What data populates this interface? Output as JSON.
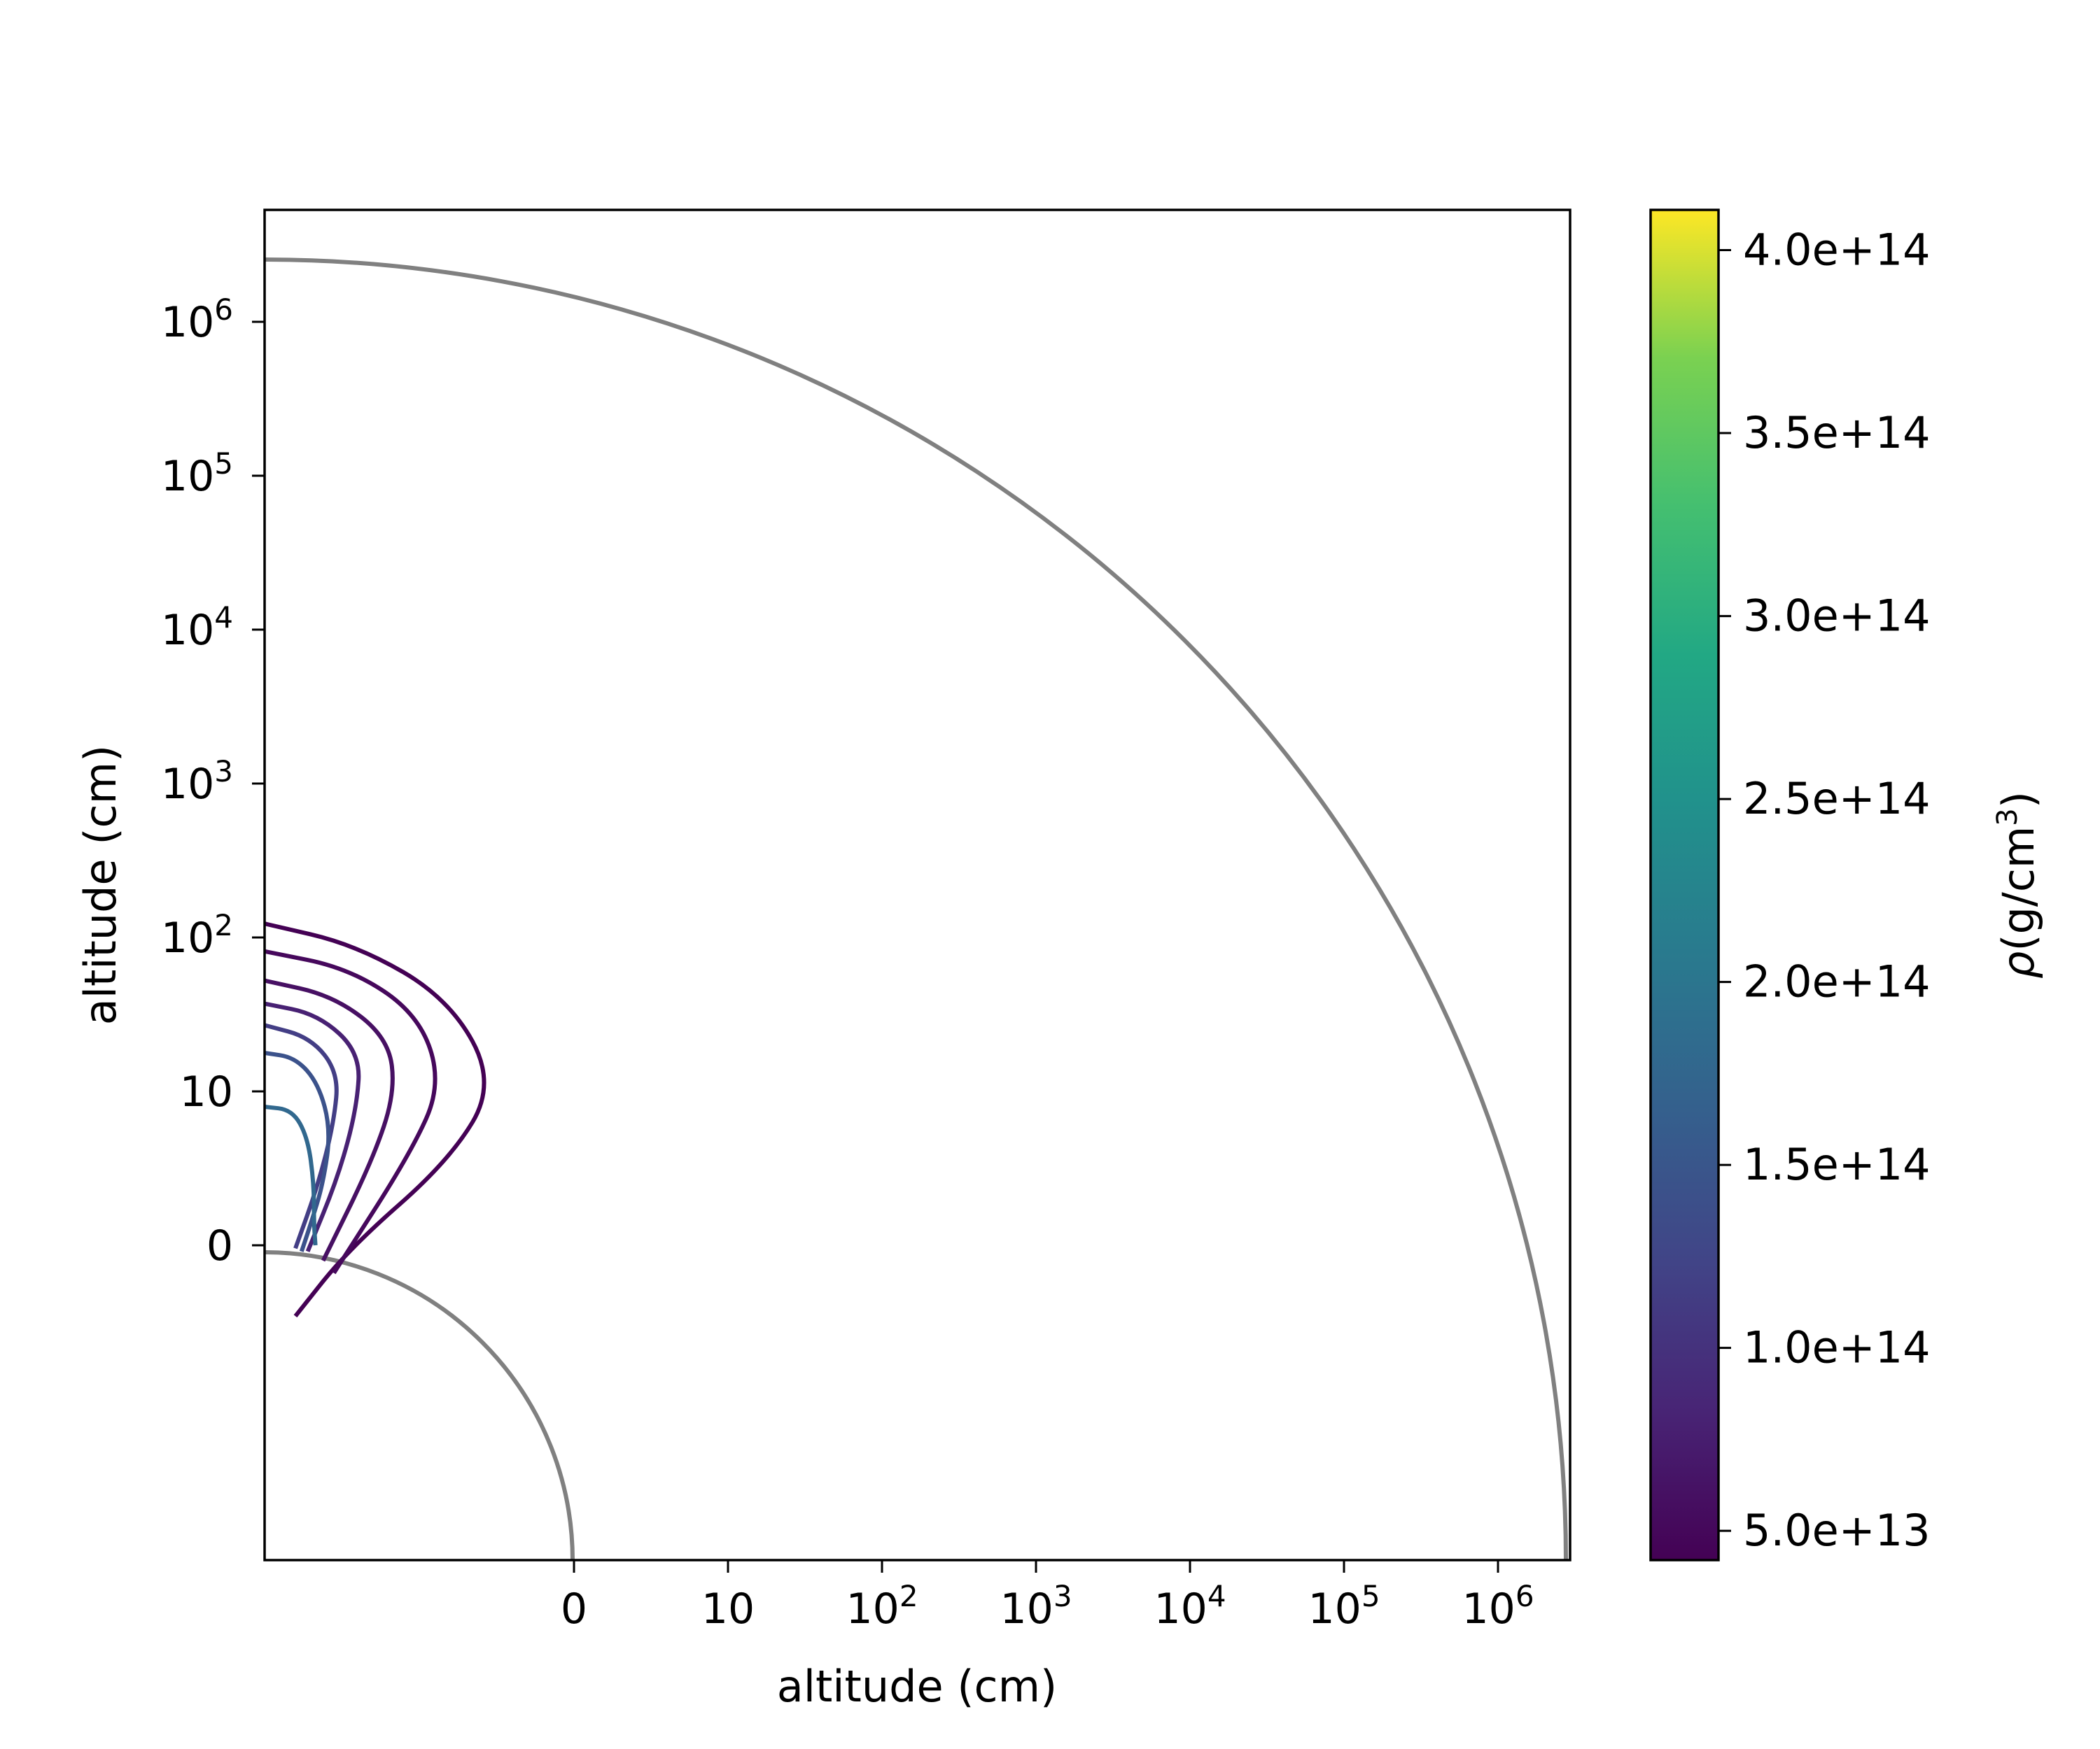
{
  "chart_data": {
    "type": "contour",
    "title": "",
    "xlabel": "altitude (cm)",
    "ylabel": "altitude (cm)",
    "x_tick_labels": [
      {
        "base": "0",
        "exp": ""
      },
      {
        "base": "10",
        "exp": ""
      },
      {
        "base": "10",
        "exp": "2"
      },
      {
        "base": "10",
        "exp": "3"
      },
      {
        "base": "10",
        "exp": "4"
      },
      {
        "base": "10",
        "exp": "5"
      },
      {
        "base": "10",
        "exp": "6"
      }
    ],
    "y_tick_labels": [
      {
        "base": "0",
        "exp": ""
      },
      {
        "base": "10",
        "exp": ""
      },
      {
        "base": "10",
        "exp": "2"
      },
      {
        "base": "10",
        "exp": "3"
      },
      {
        "base": "10",
        "exp": "4"
      },
      {
        "base": "10",
        "exp": "5"
      },
      {
        "base": "10",
        "exp": "6"
      }
    ],
    "axis_scale": "log altitude above surface (symlog-like, 0 at stellar surface)",
    "axis_range_decades": [
      -2.0,
      6.4
    ],
    "boundaries": [
      {
        "name": "inner surface",
        "radius_decades": 2.0,
        "color": "#808080"
      },
      {
        "name": "outer boundary",
        "radius_decades": 8.45,
        "color": "#808080"
      }
    ],
    "colorbar": {
      "label_symbol": "ρ",
      "label_unit_base": "(g/cm",
      "label_unit_exp": "3",
      "label_unit_close": ")",
      "min": 42000000000000,
      "max": 411000000000000,
      "colormap": "viridis",
      "ticks": [
        {
          "value": 50000000000000,
          "label": "5.0e+13"
        },
        {
          "value": 100000000000000,
          "label": "1.0e+14"
        },
        {
          "value": 150000000000000,
          "label": "1.5e+14"
        },
        {
          "value": 200000000000000,
          "label": "2.0e+14"
        },
        {
          "value": 250000000000000,
          "label": "2.5e+14"
        },
        {
          "value": 300000000000000,
          "label": "3.0e+14"
        },
        {
          "value": 350000000000000,
          "label": "3.5e+14"
        },
        {
          "value": 400000000000000,
          "label": "4.0e+14"
        }
      ]
    },
    "contours": [
      {
        "level": 50000000000000,
        "color": "#440154",
        "points": [
          [
            0,
            2.09
          ],
          [
            0.6,
            1.95
          ],
          [
            1.2,
            1.6
          ],
          [
            1.5,
            1.05
          ],
          [
            1.2,
            0.55
          ],
          [
            0.55,
            -0.02
          ],
          [
            0.2,
            -0.46
          ]
        ]
      },
      {
        "level": 70000000000000,
        "color": "#46085c",
        "points": [
          [
            0,
            1.91
          ],
          [
            0.55,
            1.8
          ],
          [
            1.0,
            1.5
          ],
          [
            1.15,
            1.05
          ],
          [
            0.95,
            0.6
          ],
          [
            0.45,
            -0.18
          ]
        ]
      },
      {
        "level": 90000000000000,
        "color": "#471063",
        "points": [
          [
            0,
            1.72
          ],
          [
            0.45,
            1.62
          ],
          [
            0.8,
            1.35
          ],
          [
            0.85,
            1.0
          ],
          [
            0.7,
            0.55
          ],
          [
            0.38,
            -0.1
          ]
        ]
      },
      {
        "level": 110000000000000,
        "color": "#482173",
        "points": [
          [
            0,
            1.57
          ],
          [
            0.35,
            1.5
          ],
          [
            0.62,
            1.25
          ],
          [
            0.6,
            0.9
          ],
          [
            0.48,
            0.45
          ],
          [
            0.28,
            -0.04
          ]
        ]
      },
      {
        "level": 130000000000000,
        "color": "#433e85",
        "points": [
          [
            0,
            1.43
          ],
          [
            0.3,
            1.35
          ],
          [
            0.48,
            1.12
          ],
          [
            0.45,
            0.8
          ],
          [
            0.35,
            0.4
          ],
          [
            0.2,
            -0.02
          ]
        ]
      },
      {
        "level": 160000000000000,
        "color": "#3b528b",
        "points": [
          [
            0,
            1.25
          ],
          [
            0.2,
            1.22
          ],
          [
            0.35,
            1.05
          ],
          [
            0.43,
            0.75
          ],
          [
            0.38,
            0.4
          ],
          [
            0.3,
            0.14
          ],
          [
            0.24,
            -0.04
          ]
        ]
      },
      {
        "level": 190000000000000,
        "color": "#31688e",
        "points": [
          [
            0,
            0.9
          ],
          [
            0.18,
            0.88
          ],
          [
            0.28,
            0.7
          ],
          [
            0.32,
            0.4
          ],
          [
            0.32,
            0.15
          ],
          [
            0.33,
            0.0
          ]
        ]
      }
    ]
  }
}
